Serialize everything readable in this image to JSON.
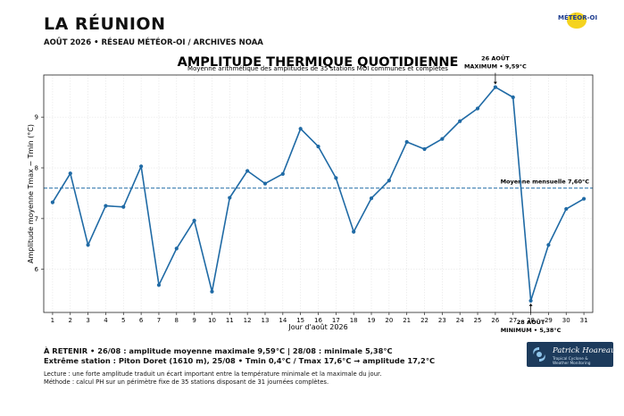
{
  "header": {
    "region": "LA RÉUNION",
    "subtitle": "AOÛT 2026 • RÉSEAU MÉTÉOR-OI / ARCHIVES NOAA",
    "logo_text": "MÉTÉOR-OI"
  },
  "chart_data": {
    "type": "line",
    "title": "AMPLITUDE THERMIQUE QUOTIDIENNE",
    "subtitle": "Moyenne arithmétique des amplitudes de 35 stations MOI communes et complètes",
    "xlabel": "Jour d'août 2026",
    "ylabel": "Amplitude moyenne Tmax − Tmin (°C)",
    "x": [
      1,
      2,
      3,
      4,
      5,
      6,
      7,
      8,
      9,
      10,
      11,
      12,
      13,
      14,
      15,
      16,
      17,
      18,
      19,
      20,
      21,
      22,
      23,
      24,
      25,
      26,
      27,
      28,
      29,
      30,
      31
    ],
    "y": [
      7.32,
      7.89,
      6.48,
      7.25,
      7.23,
      8.03,
      5.69,
      6.41,
      6.96,
      5.56,
      7.41,
      7.94,
      7.69,
      7.88,
      8.77,
      8.42,
      7.8,
      6.74,
      7.4,
      7.75,
      8.51,
      8.37,
      8.57,
      8.92,
      9.17,
      9.59,
      9.39,
      5.38,
      6.48,
      7.19,
      7.39
    ],
    "xlim": [
      0.5,
      31.5
    ],
    "ylim": [
      5.15,
      9.83
    ],
    "yticks": [
      6,
      7,
      8,
      9
    ],
    "grid": true,
    "series_color": "#1f6aa5",
    "mean": {
      "value": 7.6,
      "label": "Moyenne mensuelle  7,60°C"
    },
    "annotations": [
      {
        "x": 26,
        "y": 9.59,
        "line1": "26 AOÛT",
        "line2": "MAXIMUM • 9,59°C",
        "position": "above"
      },
      {
        "x": 28,
        "y": 5.38,
        "line1": "28 AOÛT",
        "line2": "MINIMUM • 5,38°C",
        "position": "below"
      }
    ]
  },
  "footer": {
    "line1": "À RETENIR  •  26/08 : amplitude moyenne maximale 9,59°C  |  28/08 : minimale 5,38°C",
    "line2": "Extrême station : Piton Doret (1610 m), 25/08 • Tmin 0,4°C / Tmax 17,6°C → amplitude 17,2°C",
    "note1": "Lecture : une forte amplitude traduit un écart important entre la température minimale et la maximale du jour.",
    "note2": "Méthode : calcul PH sur un périmètre fixe de 35 stations disposant de 31 journées complètes."
  },
  "brand": {
    "name": "Patrick Hoareau",
    "tagline1": "Tropical Cyclone &",
    "tagline2": "Weather Monitoring"
  }
}
